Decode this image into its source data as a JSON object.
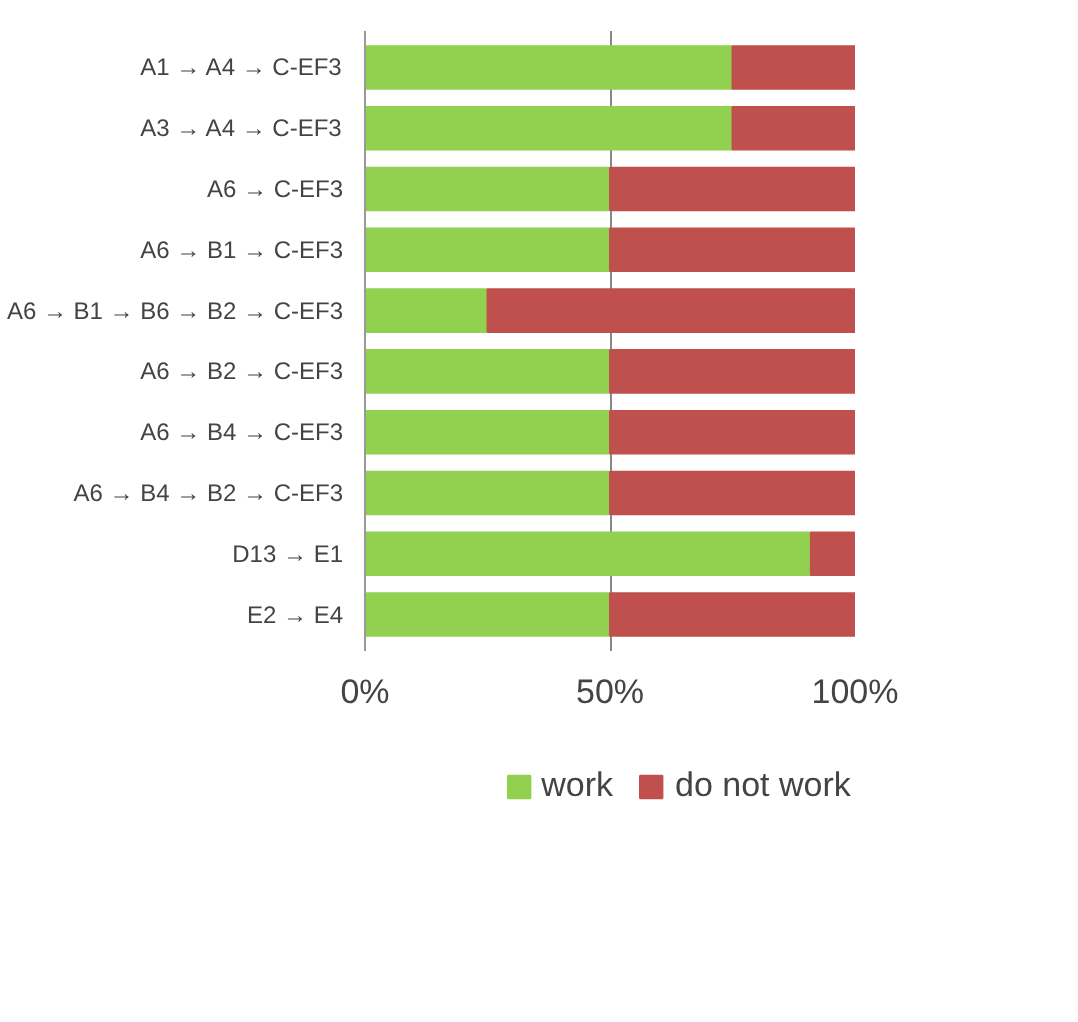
{
  "chart_data": {
    "type": "bar",
    "orientation": "horizontal",
    "stacked": true,
    "categories": [
      "A1 → A4 → C-EF3",
      "A3 → A4 → C-EF3",
      "A6 → C-EF3",
      "A6 → B1 → C-EF3",
      "A6 → B1 → B6 → B2 → C-EF3",
      "A6 → B2 → C-EF3",
      "A6 → B4 → C-EF3",
      "A6 → B4 → B2 → C-EF3",
      "D13 → E1",
      "E2 → E4"
    ],
    "series": [
      {
        "name": "work",
        "color": "#92d050",
        "values": [
          75,
          75,
          50,
          50,
          25,
          50,
          50,
          50,
          91,
          50
        ]
      },
      {
        "name": "do not work",
        "color": "#c0504d",
        "values": [
          25,
          25,
          50,
          50,
          75,
          50,
          50,
          50,
          9,
          50
        ]
      }
    ],
    "xlim": [
      0,
      100
    ],
    "xticks": [
      {
        "value": 0,
        "label": "0%"
      },
      {
        "value": 50,
        "label": "50%"
      },
      {
        "value": 100,
        "label": "100%"
      }
    ],
    "grid": "x",
    "legend": "bottom"
  }
}
